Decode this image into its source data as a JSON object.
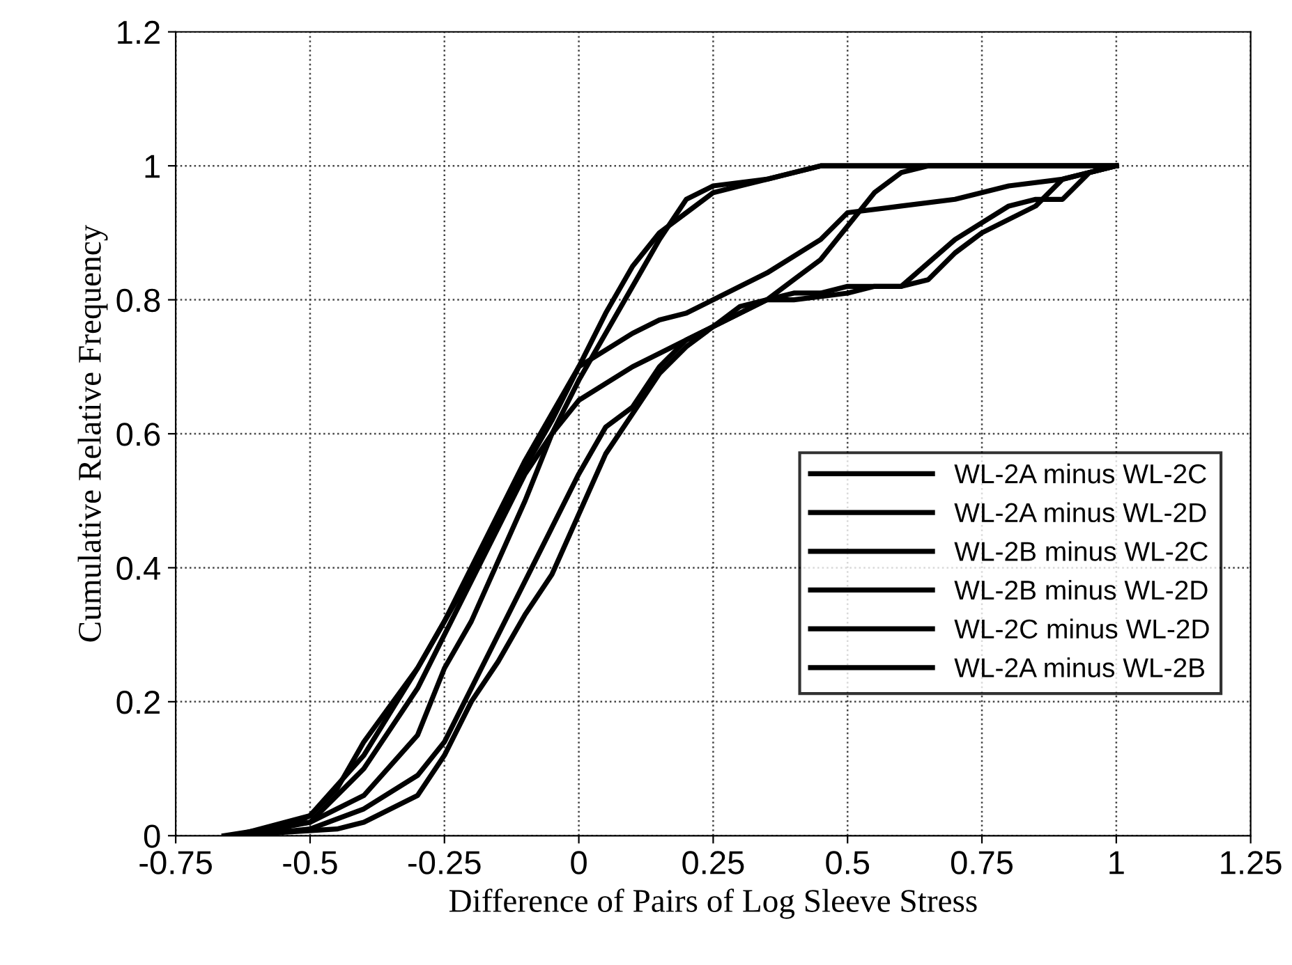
{
  "chart_data": {
    "type": "line",
    "xlabel": "Difference of Pairs of Log Sleeve Stress",
    "ylabel": "Cumulative Relative Frequency",
    "xlim": [
      -0.75,
      1.25
    ],
    "xticks": [
      -0.75,
      -0.5,
      -0.25,
      0,
      0.25,
      0.5,
      0.75,
      1,
      1.25
    ],
    "ylim": [
      0,
      1.2
    ],
    "yticks": [
      0,
      0.2,
      0.4,
      0.6,
      0.8,
      1,
      1.2
    ],
    "grid": true,
    "legend": "bottom right",
    "marker": "none",
    "line_style": "solid",
    "series": [
      {
        "name": "WL-2A minus WL-2C",
        "color": "#000000",
        "x": [
          -0.65,
          -0.55,
          -0.5,
          -0.45,
          -0.4,
          -0.3,
          -0.25,
          -0.2,
          -0.15,
          -0.1,
          -0.05,
          0,
          0.05,
          0.1,
          0.15,
          0.2,
          0.25,
          0.3,
          0.35,
          0.45,
          1.0
        ],
        "values": [
          0,
          0.01,
          0.03,
          0.07,
          0.14,
          0.25,
          0.32,
          0.39,
          0.47,
          0.55,
          0.62,
          0.7,
          0.78,
          0.85,
          0.9,
          0.93,
          0.96,
          0.97,
          0.98,
          1.0,
          1.0
        ]
      },
      {
        "name": "WL-2A minus WL-2D",
        "color": "#000000",
        "x": [
          -0.66,
          -0.5,
          -0.45,
          -0.4,
          -0.3,
          -0.25,
          -0.2,
          -0.1,
          -0.05,
          0,
          0.05,
          0.1,
          0.15,
          0.2,
          0.25,
          0.35,
          0.45,
          1.0
        ],
        "values": [
          0,
          0.02,
          0.04,
          0.06,
          0.15,
          0.25,
          0.32,
          0.5,
          0.6,
          0.68,
          0.75,
          0.82,
          0.89,
          0.95,
          0.97,
          0.98,
          1.0,
          1.0
        ]
      },
      {
        "name": "WL-2B minus WL-2C",
        "color": "#000000",
        "x": [
          -0.64,
          -0.5,
          -0.4,
          -0.3,
          -0.25,
          -0.2,
          -0.15,
          -0.1,
          -0.05,
          0,
          0.1,
          0.15,
          0.2,
          0.3,
          0.35,
          0.45,
          0.5,
          0.6,
          0.7,
          0.8,
          0.9,
          1.0
        ],
        "values": [
          0,
          0.03,
          0.12,
          0.25,
          0.32,
          0.4,
          0.48,
          0.56,
          0.63,
          0.7,
          0.75,
          0.77,
          0.78,
          0.82,
          0.84,
          0.89,
          0.93,
          0.94,
          0.95,
          0.97,
          0.98,
          1.0
        ]
      },
      {
        "name": "WL-2B minus WL-2D",
        "color": "#000000",
        "x": [
          -0.63,
          -0.5,
          -0.4,
          -0.3,
          -0.2,
          -0.1,
          -0.05,
          0,
          0.1,
          0.2,
          0.25,
          0.3,
          0.35,
          0.4,
          0.5,
          0.55,
          0.6,
          0.7,
          0.8,
          0.85,
          0.9,
          0.95,
          1.0
        ],
        "values": [
          0,
          0.02,
          0.1,
          0.22,
          0.38,
          0.54,
          0.6,
          0.65,
          0.7,
          0.74,
          0.76,
          0.78,
          0.8,
          0.8,
          0.81,
          0.82,
          0.82,
          0.89,
          0.94,
          0.95,
          0.95,
          0.99,
          1.0
        ]
      },
      {
        "name": "WL-2C minus WL-2D",
        "color": "#000000",
        "x": [
          -0.62,
          -0.5,
          -0.4,
          -0.3,
          -0.25,
          -0.2,
          -0.15,
          -0.1,
          -0.05,
          0,
          0.05,
          0.1,
          0.15,
          0.2,
          0.25,
          0.3,
          0.35,
          0.4,
          0.45,
          0.5,
          0.55,
          0.6,
          0.65,
          1.0
        ],
        "values": [
          0,
          0.01,
          0.04,
          0.09,
          0.14,
          0.22,
          0.3,
          0.38,
          0.46,
          0.54,
          0.61,
          0.64,
          0.7,
          0.74,
          0.76,
          0.78,
          0.8,
          0.83,
          0.86,
          0.91,
          0.96,
          0.99,
          1.0,
          1.0
        ]
      },
      {
        "name": "WL-2A minus WL-2B",
        "color": "#000000",
        "x": [
          -0.61,
          -0.55,
          -0.45,
          -0.4,
          -0.3,
          -0.25,
          -0.2,
          -0.15,
          -0.1,
          -0.05,
          0,
          0.05,
          0.1,
          0.15,
          0.2,
          0.25,
          0.3,
          0.35,
          0.4,
          0.45,
          0.5,
          0.55,
          0.6,
          0.65,
          0.7,
          0.75,
          0.85,
          0.9,
          0.95,
          1.0
        ],
        "values": [
          0,
          0.005,
          0.01,
          0.02,
          0.06,
          0.12,
          0.2,
          0.26,
          0.33,
          0.39,
          0.48,
          0.57,
          0.63,
          0.69,
          0.73,
          0.76,
          0.79,
          0.8,
          0.81,
          0.81,
          0.82,
          0.82,
          0.82,
          0.83,
          0.87,
          0.9,
          0.94,
          0.98,
          0.99,
          1.0
        ]
      }
    ]
  }
}
